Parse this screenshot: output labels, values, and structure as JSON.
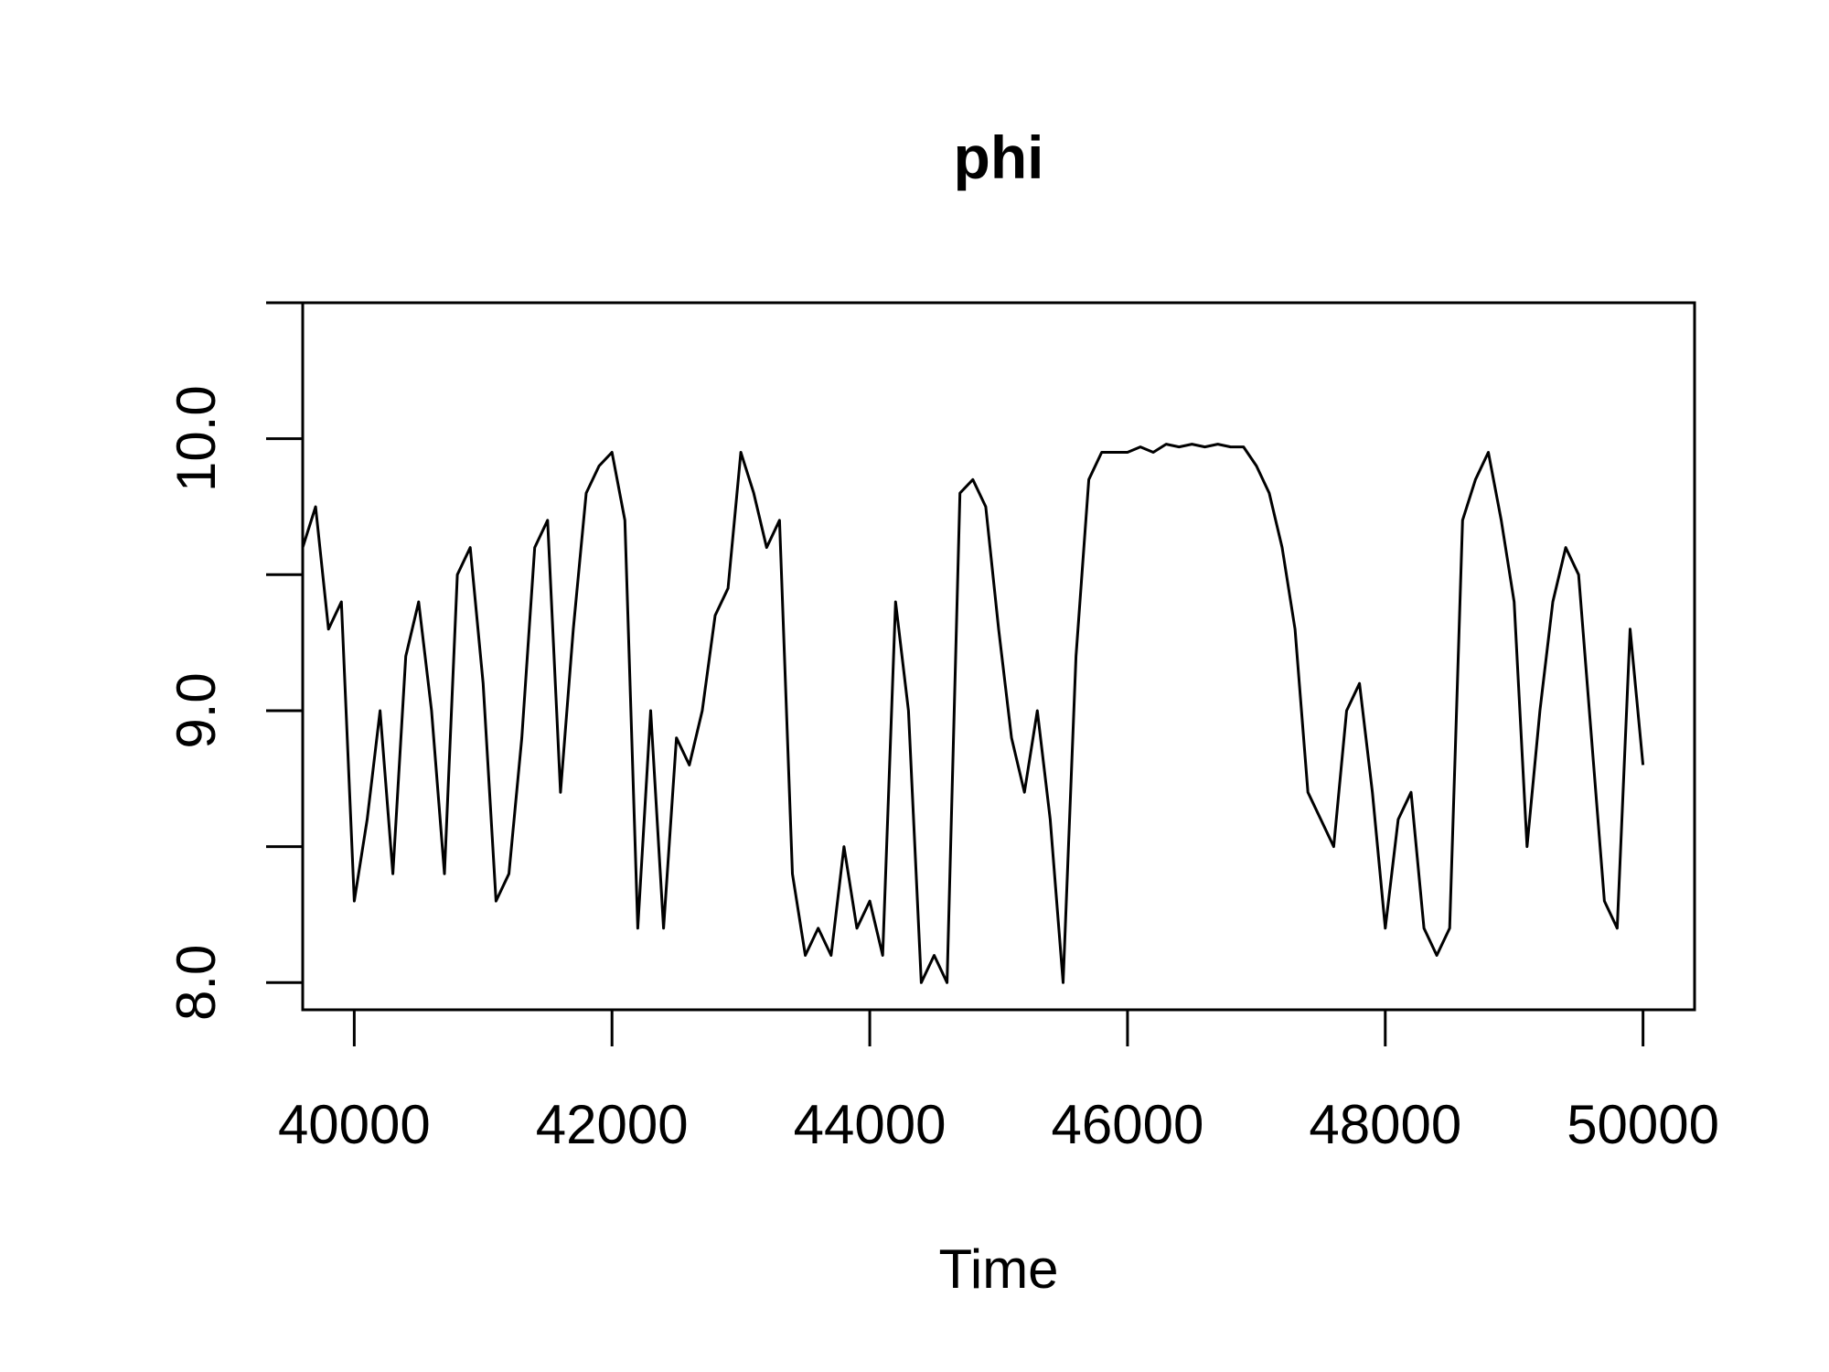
{
  "chart_data": {
    "type": "line",
    "title": "phi",
    "xlabel": "Time",
    "ylabel": "",
    "xlim": [
      39600,
      50400
    ],
    "ylim": [
      7.9,
      10.5
    ],
    "x_ticks": [
      40000,
      42000,
      44000,
      46000,
      48000,
      50000
    ],
    "x_tick_labels": [
      "40000",
      "42000",
      "44000",
      "46000",
      "48000",
      "50000"
    ],
    "y_ticks": [
      8.0,
      8.5,
      9.0,
      9.5,
      10.0,
      10.5
    ],
    "y_tick_labels": [
      "8.0",
      "",
      "9.0",
      "",
      "10.0",
      ""
    ],
    "grid": false,
    "series": [
      {
        "color": "#000000",
        "x": [
          39600,
          39700,
          39800,
          39900,
          40000,
          40100,
          40200,
          40300,
          40400,
          40500,
          40600,
          40700,
          40800,
          40900,
          41000,
          41100,
          41200,
          41300,
          41400,
          41500,
          41600,
          41700,
          41800,
          41900,
          42000,
          42100,
          42200,
          42300,
          42400,
          42500,
          42600,
          42700,
          42800,
          42900,
          43000,
          43100,
          43200,
          43300,
          43400,
          43500,
          43600,
          43700,
          43800,
          43900,
          44000,
          44100,
          44200,
          44300,
          44400,
          44500,
          44600,
          44700,
          44800,
          44900,
          45000,
          45100,
          45200,
          45300,
          45400,
          45500,
          45600,
          45700,
          45800,
          45900,
          46000,
          46100,
          46200,
          46300,
          46400,
          46500,
          46600,
          46700,
          46800,
          46900,
          47000,
          47100,
          47200,
          47300,
          47400,
          47500,
          47600,
          47700,
          47800,
          47900,
          48000,
          48100,
          48200,
          48300,
          48400,
          48500,
          48600,
          48700,
          48800,
          48900,
          49000,
          49100,
          49200,
          49300,
          49400,
          49500,
          49600,
          49700,
          49800,
          49900,
          50000
        ],
        "y": [
          9.6,
          9.75,
          9.3,
          9.4,
          8.3,
          8.6,
          9.0,
          8.4,
          9.2,
          9.4,
          9.0,
          8.4,
          9.5,
          9.6,
          9.1,
          8.3,
          8.4,
          8.9,
          9.6,
          9.7,
          8.7,
          9.3,
          9.8,
          9.9,
          9.95,
          9.7,
          8.2,
          9.0,
          8.2,
          8.9,
          8.8,
          9.0,
          9.35,
          9.45,
          9.95,
          9.8,
          9.6,
          9.7,
          8.4,
          8.1,
          8.2,
          8.1,
          8.5,
          8.2,
          8.3,
          8.1,
          9.4,
          9.0,
          8.0,
          8.1,
          8.0,
          9.8,
          9.85,
          9.75,
          9.3,
          8.9,
          8.7,
          9.0,
          8.6,
          8.0,
          9.2,
          9.85,
          9.95,
          9.95,
          9.95,
          9.97,
          9.95,
          9.98,
          9.97,
          9.98,
          9.97,
          9.98,
          9.97,
          9.97,
          9.9,
          9.8,
          9.6,
          9.3,
          8.7,
          8.6,
          8.5,
          9.0,
          9.1,
          8.7,
          8.2,
          8.6,
          8.7,
          8.2,
          8.1,
          8.2,
          9.7,
          9.85,
          9.95,
          9.7,
          9.4,
          8.5,
          9.0,
          9.4,
          9.6,
          9.5,
          8.9,
          8.3,
          8.2,
          9.3,
          8.8
        ]
      }
    ]
  }
}
